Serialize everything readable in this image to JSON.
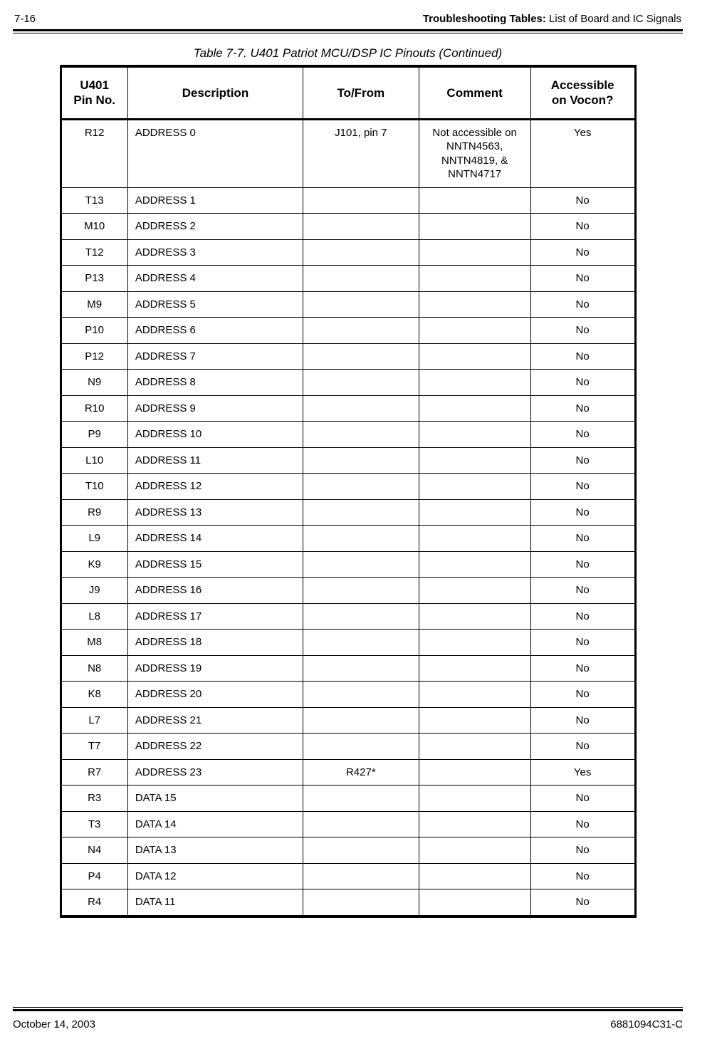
{
  "header": {
    "page_num": "7-16",
    "section_bold": "Troubleshooting Tables:",
    "section_rest": " List of Board and IC Signals"
  },
  "caption": "Table 7-7.  U401 Patriot MCU/DSP IC Pinouts (Continued)",
  "table": {
    "columns": {
      "c1a": "U401",
      "c1b": "Pin No.",
      "c2": "Description",
      "c3": "To/From",
      "c4": "Comment",
      "c5a": "Accessible",
      "c5b": "on Vocon?"
    },
    "rows": [
      {
        "pin": "R12",
        "desc": "ADDRESS 0",
        "tf": "J101, pin 7",
        "com": "Not accessible on NNTN4563, NNTN4819, & NNTN4717",
        "acc": "Yes"
      },
      {
        "pin": "T13",
        "desc": "ADDRESS 1",
        "tf": "",
        "com": "",
        "acc": "No"
      },
      {
        "pin": "M10",
        "desc": "ADDRESS 2",
        "tf": "",
        "com": "",
        "acc": "No"
      },
      {
        "pin": "T12",
        "desc": "ADDRESS 3",
        "tf": "",
        "com": "",
        "acc": "No"
      },
      {
        "pin": "P13",
        "desc": "ADDRESS 4",
        "tf": "",
        "com": "",
        "acc": "No"
      },
      {
        "pin": "M9",
        "desc": "ADDRESS 5",
        "tf": "",
        "com": "",
        "acc": "No"
      },
      {
        "pin": "P10",
        "desc": "ADDRESS 6",
        "tf": "",
        "com": "",
        "acc": "No"
      },
      {
        "pin": "P12",
        "desc": "ADDRESS 7",
        "tf": "",
        "com": "",
        "acc": "No"
      },
      {
        "pin": "N9",
        "desc": "ADDRESS 8",
        "tf": "",
        "com": "",
        "acc": "No"
      },
      {
        "pin": "R10",
        "desc": "ADDRESS 9",
        "tf": "",
        "com": "",
        "acc": "No"
      },
      {
        "pin": "P9",
        "desc": "ADDRESS 10",
        "tf": "",
        "com": "",
        "acc": "No"
      },
      {
        "pin": "L10",
        "desc": "ADDRESS 11",
        "tf": "",
        "com": "",
        "acc": "No"
      },
      {
        "pin": "T10",
        "desc": "ADDRESS 12",
        "tf": "",
        "com": "",
        "acc": "No"
      },
      {
        "pin": "R9",
        "desc": "ADDRESS 13",
        "tf": "",
        "com": "",
        "acc": "No"
      },
      {
        "pin": "L9",
        "desc": "ADDRESS 14",
        "tf": "",
        "com": "",
        "acc": "No"
      },
      {
        "pin": "K9",
        "desc": "ADDRESS 15",
        "tf": "",
        "com": "",
        "acc": "No"
      },
      {
        "pin": "J9",
        "desc": "ADDRESS 16",
        "tf": "",
        "com": "",
        "acc": "No"
      },
      {
        "pin": "L8",
        "desc": "ADDRESS 17",
        "tf": "",
        "com": "",
        "acc": "No"
      },
      {
        "pin": "M8",
        "desc": "ADDRESS 18",
        "tf": "",
        "com": "",
        "acc": "No"
      },
      {
        "pin": "N8",
        "desc": "ADDRESS 19",
        "tf": "",
        "com": "",
        "acc": "No"
      },
      {
        "pin": "K8",
        "desc": "ADDRESS 20",
        "tf": "",
        "com": "",
        "acc": "No"
      },
      {
        "pin": "L7",
        "desc": "ADDRESS 21",
        "tf": "",
        "com": "",
        "acc": "No"
      },
      {
        "pin": "T7",
        "desc": "ADDRESS 22",
        "tf": "",
        "com": "",
        "acc": "No"
      },
      {
        "pin": "R7",
        "desc": "ADDRESS 23",
        "tf": "R427*",
        "com": "",
        "acc": "Yes"
      },
      {
        "pin": "R3",
        "desc": "DATA 15",
        "tf": "",
        "com": "",
        "acc": "No"
      },
      {
        "pin": "T3",
        "desc": "DATA 14",
        "tf": "",
        "com": "",
        "acc": "No"
      },
      {
        "pin": "N4",
        "desc": "DATA 13",
        "tf": "",
        "com": "",
        "acc": "No"
      },
      {
        "pin": "P4",
        "desc": "DATA 12",
        "tf": "",
        "com": "",
        "acc": "No"
      },
      {
        "pin": "R4",
        "desc": "DATA 11",
        "tf": "",
        "com": "",
        "acc": "No"
      }
    ]
  },
  "footer": {
    "date": "October 14, 2003",
    "doc": "6881094C31-C"
  }
}
